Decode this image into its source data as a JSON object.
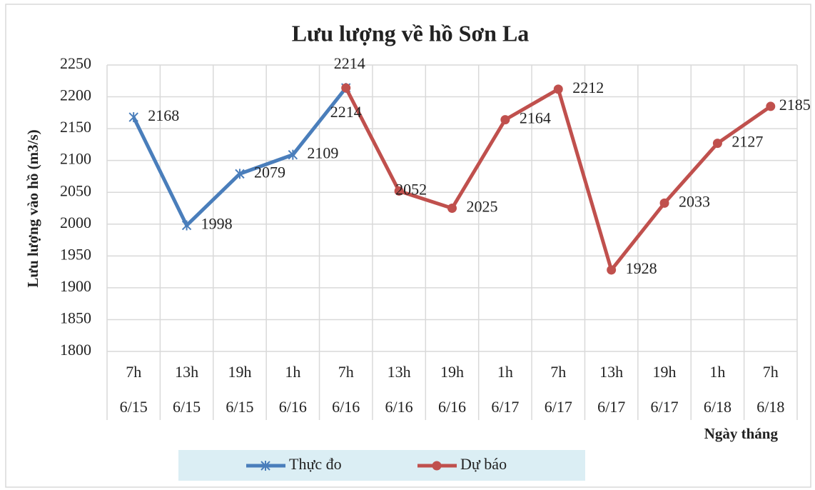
{
  "chart_data": {
    "type": "line",
    "title": "Lưu lượng về hồ Sơn La",
    "y_label": "Lưu lượng vào hồ (m3/s)",
    "x_label": "Ngày tháng",
    "categories": [
      [
        "7h",
        "6/15"
      ],
      [
        "13h",
        "6/15"
      ],
      [
        "19h",
        "6/15"
      ],
      [
        "1h",
        "6/16"
      ],
      [
        "7h",
        "6/16"
      ],
      [
        "13h",
        "6/16"
      ],
      [
        "19h",
        "6/16"
      ],
      [
        "1h",
        "6/17"
      ],
      [
        "7h",
        "6/17"
      ],
      [
        "13h",
        "6/17"
      ],
      [
        "19h",
        "6/17"
      ],
      [
        "1h",
        "6/18"
      ],
      [
        "7h",
        "6/18"
      ]
    ],
    "series": [
      {
        "name": "Thực đo",
        "color": "#4a7ebb",
        "marker": "star",
        "values": [
          2168,
          1998,
          2079,
          2109,
          2214,
          null,
          null,
          null,
          null,
          null,
          null,
          null,
          null
        ]
      },
      {
        "name": "Dự báo",
        "color": "#c0504d",
        "marker": "circle",
        "values": [
          null,
          null,
          null,
          null,
          2214,
          2052,
          2025,
          2164,
          2212,
          1928,
          2033,
          2127,
          2185
        ]
      }
    ],
    "ylim": [
      1800,
      2250
    ],
    "yticks": [
      1800,
      1850,
      1900,
      1950,
      2000,
      2050,
      2100,
      2150,
      2200,
      2250
    ],
    "grid": true,
    "legend": "bottom"
  }
}
